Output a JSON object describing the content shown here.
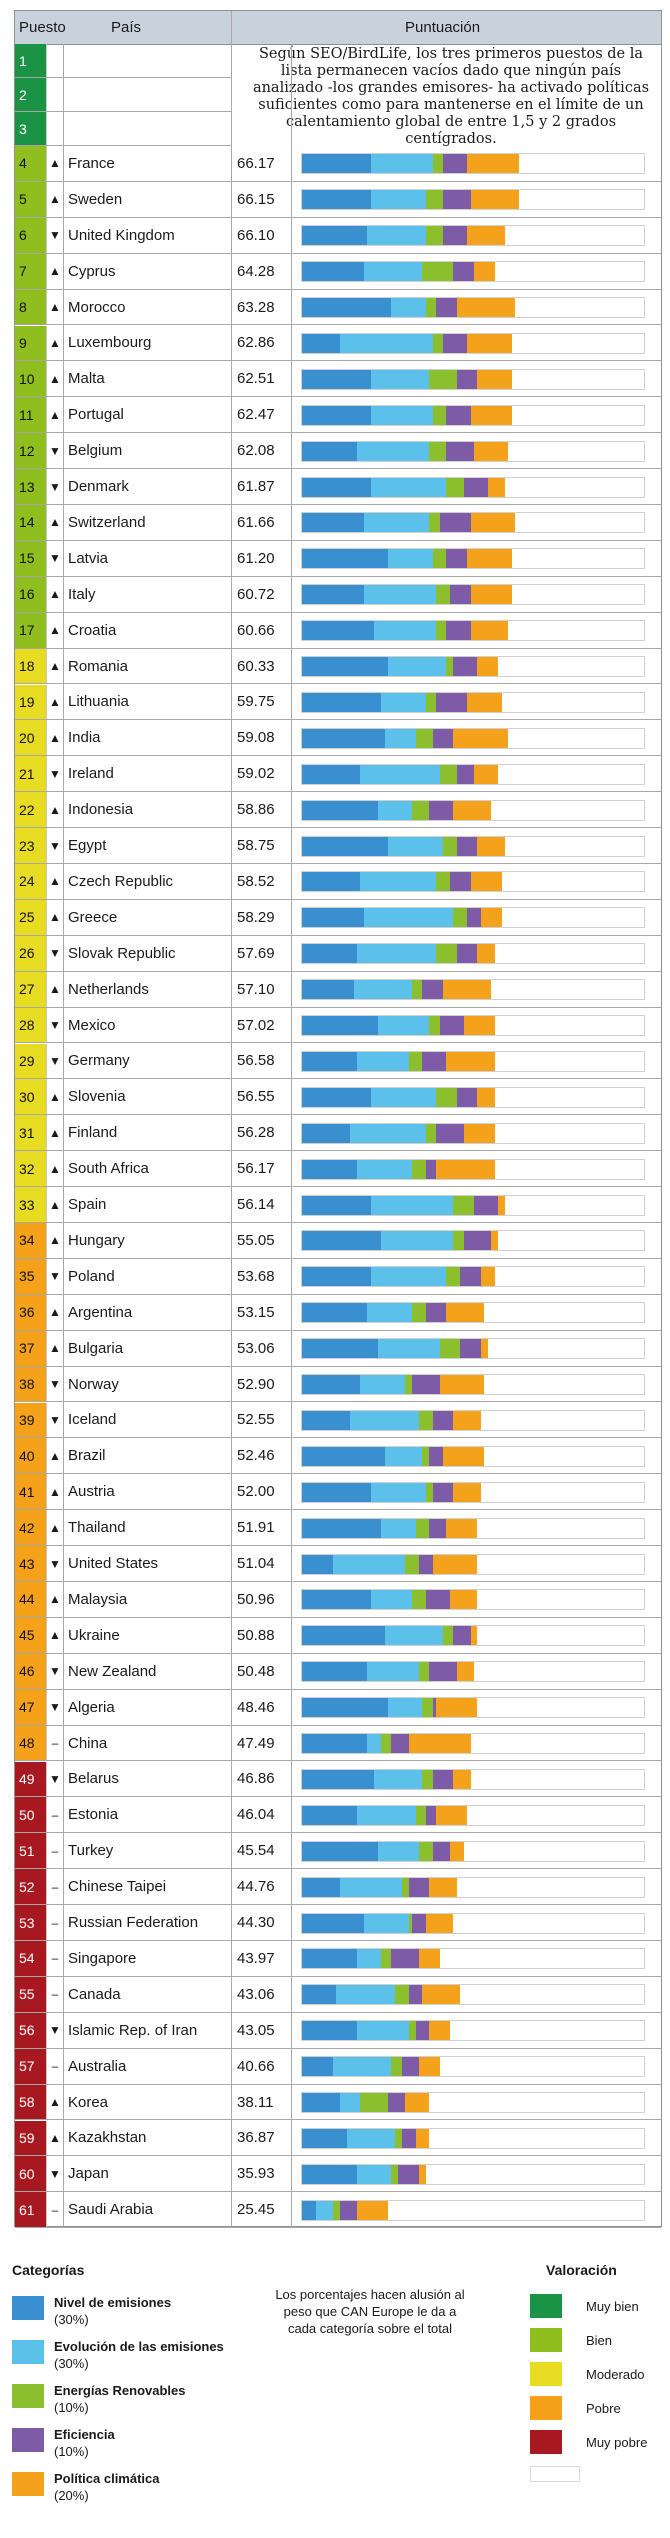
{
  "header": {
    "rank": "Puesto",
    "country": "País",
    "score": "Puntuación"
  },
  "note": "Según SEO/BirdLife, los tres primeros puestos de la lista permanecen vacíos dado que ningún país analizado -los grandes emisores- ha activado políticas suficientes como para mantenerse en el límite de un calentamiento global de entre 1,5 y 2 grados centígrados.",
  "empty_ranks": [
    "1",
    "2",
    "3"
  ],
  "colors": {
    "rating": {
      "muy_bien": "#1a9444",
      "bien": "#8fbe1e",
      "moderado": "#e8dc22",
      "pobre": "#f5a21a",
      "muy_pobre": "#a81820"
    },
    "category": {
      "emisiones": "#3a8fd1",
      "evolucion": "#5bc1ea",
      "renovables": "#8cbf2e",
      "eficiencia": "#7d5ba6",
      "politica": "#f4a21c"
    }
  },
  "chart_data": {
    "type": "table",
    "columns": [
      "Puesto",
      "País",
      "Puntuación"
    ],
    "scale_max": 100,
    "rows": [
      {
        "rank": "4",
        "trend": "▲",
        "country": "France",
        "score": "66.17",
        "rating": "bien",
        "parts": [
          20,
          18,
          3,
          7,
          15
        ]
      },
      {
        "rank": "5",
        "trend": "▲",
        "country": "Sweden",
        "score": "66.15",
        "rating": "bien",
        "parts": [
          20,
          16,
          5,
          8,
          14
        ]
      },
      {
        "rank": "6",
        "trend": "▼",
        "country": "United Kingdom",
        "score": "66.10",
        "rating": "bien",
        "parts": [
          19,
          17,
          5,
          7,
          11
        ]
      },
      {
        "rank": "7",
        "trend": "▲",
        "country": "Cyprus",
        "score": "64.28",
        "rating": "bien",
        "parts": [
          18,
          17,
          9,
          6,
          6
        ]
      },
      {
        "rank": "8",
        "trend": "▲",
        "country": "Morocco",
        "score": "63.28",
        "rating": "bien",
        "parts": [
          26,
          10,
          3,
          6,
          17
        ]
      },
      {
        "rank": "9",
        "trend": "▲",
        "country": "Luxembourg",
        "score": "62.86",
        "rating": "bien",
        "parts": [
          11,
          27,
          3,
          7,
          13
        ]
      },
      {
        "rank": "10",
        "trend": "▲",
        "country": "Malta",
        "score": "62.51",
        "rating": "bien",
        "parts": [
          20,
          17,
          8,
          6,
          10
        ]
      },
      {
        "rank": "11",
        "trend": "▲",
        "country": "Portugal",
        "score": "62.47",
        "rating": "bien",
        "parts": [
          20,
          18,
          4,
          7,
          12
        ]
      },
      {
        "rank": "12",
        "trend": "▼",
        "country": "Belgium",
        "score": "62.08",
        "rating": "bien",
        "parts": [
          16,
          21,
          5,
          8,
          10
        ]
      },
      {
        "rank": "13",
        "trend": "▼",
        "country": "Denmark",
        "score": "61.87",
        "rating": "bien",
        "parts": [
          20,
          22,
          5,
          7,
          5
        ]
      },
      {
        "rank": "14",
        "trend": "▲",
        "country": "Switzerland",
        "score": "61.66",
        "rating": "bien",
        "parts": [
          18,
          19,
          3,
          9,
          13
        ]
      },
      {
        "rank": "15",
        "trend": "▼",
        "country": "Latvia",
        "score": "61.20",
        "rating": "bien",
        "parts": [
          25,
          13,
          4,
          6,
          13
        ]
      },
      {
        "rank": "16",
        "trend": "▲",
        "country": "Italy",
        "score": "60.72",
        "rating": "bien",
        "parts": [
          18,
          21,
          4,
          6,
          12
        ]
      },
      {
        "rank": "17",
        "trend": "▲",
        "country": "Croatia",
        "score": "60.66",
        "rating": "bien",
        "parts": [
          21,
          18,
          3,
          7,
          11
        ]
      },
      {
        "rank": "18",
        "trend": "▲",
        "country": "Romania",
        "score": "60.33",
        "rating": "moderado",
        "parts": [
          25,
          17,
          2,
          7,
          6
        ]
      },
      {
        "rank": "19",
        "trend": "▲",
        "country": "Lithuania",
        "score": "59.75",
        "rating": "moderado",
        "parts": [
          23,
          13,
          3,
          9,
          10
        ]
      },
      {
        "rank": "20",
        "trend": "▲",
        "country": "India",
        "score": "59.08",
        "rating": "moderado",
        "parts": [
          24,
          9,
          5,
          6,
          16
        ]
      },
      {
        "rank": "21",
        "trend": "▼",
        "country": "Ireland",
        "score": "59.02",
        "rating": "moderado",
        "parts": [
          17,
          23,
          5,
          5,
          7
        ]
      },
      {
        "rank": "22",
        "trend": "▲",
        "country": "Indonesia",
        "score": "58.86",
        "rating": "moderado",
        "parts": [
          22,
          10,
          5,
          7,
          11
        ]
      },
      {
        "rank": "23",
        "trend": "▼",
        "country": "Egypt",
        "score": "58.75",
        "rating": "moderado",
        "parts": [
          25,
          16,
          4,
          6,
          8
        ]
      },
      {
        "rank": "24",
        "trend": "▲",
        "country": "Czech Republic",
        "score": "58.52",
        "rating": "moderado",
        "parts": [
          17,
          22,
          4,
          6,
          9
        ]
      },
      {
        "rank": "25",
        "trend": "▲",
        "country": "Greece",
        "score": "58.29",
        "rating": "moderado",
        "parts": [
          18,
          26,
          4,
          4,
          6
        ]
      },
      {
        "rank": "26",
        "trend": "▼",
        "country": "Slovak Republic",
        "score": "57.69",
        "rating": "moderado",
        "parts": [
          16,
          23,
          6,
          6,
          5
        ]
      },
      {
        "rank": "27",
        "trend": "▲",
        "country": "Netherlands",
        "score": "57.10",
        "rating": "moderado",
        "parts": [
          15,
          17,
          3,
          6,
          14
        ]
      },
      {
        "rank": "28",
        "trend": "▼",
        "country": "Mexico",
        "score": "57.02",
        "rating": "moderado",
        "parts": [
          22,
          15,
          3,
          7,
          9
        ]
      },
      {
        "rank": "29",
        "trend": "▼",
        "country": "Germany",
        "score": "56.58",
        "rating": "moderado",
        "parts": [
          16,
          15,
          4,
          7,
          14
        ]
      },
      {
        "rank": "30",
        "trend": "▲",
        "country": "Slovenia",
        "score": "56.55",
        "rating": "moderado",
        "parts": [
          20,
          19,
          6,
          6,
          5
        ]
      },
      {
        "rank": "31",
        "trend": "▲",
        "country": "Finland",
        "score": "56.28",
        "rating": "moderado",
        "parts": [
          14,
          22,
          3,
          8,
          9
        ]
      },
      {
        "rank": "32",
        "trend": "▲",
        "country": "South Africa",
        "score": "56.17",
        "rating": "moderado",
        "parts": [
          16,
          16,
          4,
          3,
          17
        ]
      },
      {
        "rank": "33",
        "trend": "▲",
        "country": "Spain",
        "score": "56.14",
        "rating": "moderado",
        "parts": [
          20,
          24,
          6,
          7,
          2
        ]
      },
      {
        "rank": "34",
        "trend": "▲",
        "country": "Hungary",
        "score": "55.05",
        "rating": "pobre",
        "parts": [
          23,
          21,
          3,
          8,
          2
        ]
      },
      {
        "rank": "35",
        "trend": "▼",
        "country": "Poland",
        "score": "53.68",
        "rating": "pobre",
        "parts": [
          20,
          22,
          4,
          6,
          4
        ]
      },
      {
        "rank": "36",
        "trend": "▲",
        "country": "Argentina",
        "score": "53.15",
        "rating": "pobre",
        "parts": [
          19,
          13,
          4,
          6,
          11
        ]
      },
      {
        "rank": "37",
        "trend": "▲",
        "country": "Bulgaria",
        "score": "53.06",
        "rating": "pobre",
        "parts": [
          22,
          18,
          6,
          6,
          2
        ]
      },
      {
        "rank": "38",
        "trend": "▼",
        "country": "Norway",
        "score": "52.90",
        "rating": "pobre",
        "parts": [
          17,
          13,
          2,
          8,
          13
        ]
      },
      {
        "rank": "39",
        "trend": "▼",
        "country": "Iceland",
        "score": "52.55",
        "rating": "pobre",
        "parts": [
          14,
          20,
          4,
          6,
          8
        ]
      },
      {
        "rank": "40",
        "trend": "▲",
        "country": "Brazil",
        "score": "52.46",
        "rating": "pobre",
        "parts": [
          24,
          11,
          2,
          4,
          12
        ]
      },
      {
        "rank": "41",
        "trend": "▲",
        "country": "Austria",
        "score": "52.00",
        "rating": "pobre",
        "parts": [
          20,
          16,
          2,
          6,
          8
        ]
      },
      {
        "rank": "42",
        "trend": "▲",
        "country": "Thailand",
        "score": "51.91",
        "rating": "pobre",
        "parts": [
          23,
          10,
          4,
          5,
          9
        ]
      },
      {
        "rank": "43",
        "trend": "▼",
        "country": "United States",
        "score": "51.04",
        "rating": "pobre",
        "parts": [
          9,
          21,
          4,
          4,
          13
        ]
      },
      {
        "rank": "44",
        "trend": "▲",
        "country": "Malaysia",
        "score": "50.96",
        "rating": "pobre",
        "parts": [
          20,
          12,
          4,
          7,
          8
        ]
      },
      {
        "rank": "45",
        "trend": "▲",
        "country": "Ukraine",
        "score": "50.88",
        "rating": "pobre",
        "parts": [
          24,
          17,
          3,
          5,
          2
        ]
      },
      {
        "rank": "46",
        "trend": "▼",
        "country": "New Zealand",
        "score": "50.48",
        "rating": "pobre",
        "parts": [
          19,
          15,
          3,
          8,
          5
        ]
      },
      {
        "rank": "47",
        "trend": "▼",
        "country": "Algeria",
        "score": "48.46",
        "rating": "pobre",
        "parts": [
          25,
          10,
          3,
          1,
          12
        ]
      },
      {
        "rank": "48",
        "trend": "–",
        "country": "China",
        "score": "47.49",
        "rating": "pobre",
        "parts": [
          19,
          4,
          3,
          5,
          18
        ]
      },
      {
        "rank": "49",
        "trend": "▼",
        "country": "Belarus",
        "score": "46.86",
        "rating": "muy_pobre",
        "parts": [
          21,
          14,
          3,
          6,
          5
        ]
      },
      {
        "rank": "50",
        "trend": "–",
        "country": "Estonia",
        "score": "46.04",
        "rating": "muy_pobre",
        "parts": [
          16,
          17,
          3,
          3,
          9
        ]
      },
      {
        "rank": "51",
        "trend": "–",
        "country": "Turkey",
        "score": "45.54",
        "rating": "muy_pobre",
        "parts": [
          22,
          12,
          4,
          5,
          4
        ]
      },
      {
        "rank": "52",
        "trend": "–",
        "country": "Chinese Taipei",
        "score": "44.76",
        "rating": "muy_pobre",
        "parts": [
          11,
          18,
          2,
          6,
          8
        ]
      },
      {
        "rank": "53",
        "trend": "–",
        "country": "Russian Federation",
        "score": "44.30",
        "rating": "muy_pobre",
        "parts": [
          18,
          13,
          1,
          4,
          8
        ]
      },
      {
        "rank": "54",
        "trend": "–",
        "country": "Singapore",
        "score": "43.97",
        "rating": "muy_pobre",
        "parts": [
          16,
          7,
          3,
          8,
          6
        ]
      },
      {
        "rank": "55",
        "trend": "–",
        "country": "Canada",
        "score": "43.06",
        "rating": "muy_pobre",
        "parts": [
          10,
          17,
          4,
          4,
          11
        ]
      },
      {
        "rank": "56",
        "trend": "▼",
        "country": "Islamic Rep. of Iran",
        "score": "43.05",
        "rating": "muy_pobre",
        "parts": [
          16,
          15,
          2,
          4,
          6
        ]
      },
      {
        "rank": "57",
        "trend": "–",
        "country": "Australia",
        "score": "40.66",
        "rating": "muy_pobre",
        "parts": [
          9,
          17,
          3,
          5,
          6
        ]
      },
      {
        "rank": "58",
        "trend": "▲",
        "country": "Korea",
        "score": "38.11",
        "rating": "muy_pobre",
        "parts": [
          11,
          6,
          8,
          5,
          7
        ]
      },
      {
        "rank": "59",
        "trend": "▲",
        "country": "Kazakhstan",
        "score": "36.87",
        "rating": "muy_pobre",
        "parts": [
          13,
          14,
          2,
          4,
          4
        ]
      },
      {
        "rank": "60",
        "trend": "▼",
        "country": "Japan",
        "score": "35.93",
        "rating": "muy_pobre",
        "parts": [
          16,
          10,
          2,
          6,
          2
        ]
      },
      {
        "rank": "61",
        "trend": "–",
        "country": "Saudi Arabia",
        "score": "25.45",
        "rating": "muy_pobre",
        "parts": [
          4,
          5,
          2,
          5,
          9
        ]
      }
    ]
  },
  "legend": {
    "categories_title": "Categorías",
    "categories": [
      {
        "key": "emisiones",
        "label": "Nivel de emisiones",
        "pct": "(30%)"
      },
      {
        "key": "evolucion",
        "label": "Evolución de las emisiones",
        "pct": "(30%)"
      },
      {
        "key": "renovables",
        "label": "Energías Renovables",
        "pct": "(10%)"
      },
      {
        "key": "eficiencia",
        "label": "Eficiencia",
        "pct": "(10%)"
      },
      {
        "key": "politica",
        "label": "Política climática",
        "pct": "(20%)"
      }
    ],
    "middle_note": "Los porcentajes hacen alusión al peso que CAN Europe le da a cada categoría sobre el total",
    "ratings_title": "Valoración",
    "ratings": [
      {
        "key": "muy_bien",
        "label": "Muy bien"
      },
      {
        "key": "bien",
        "label": "Bien"
      },
      {
        "key": "moderado",
        "label": "Moderado"
      },
      {
        "key": "pobre",
        "label": "Pobre"
      },
      {
        "key": "muy_pobre",
        "label": "Muy pobre"
      }
    ]
  }
}
